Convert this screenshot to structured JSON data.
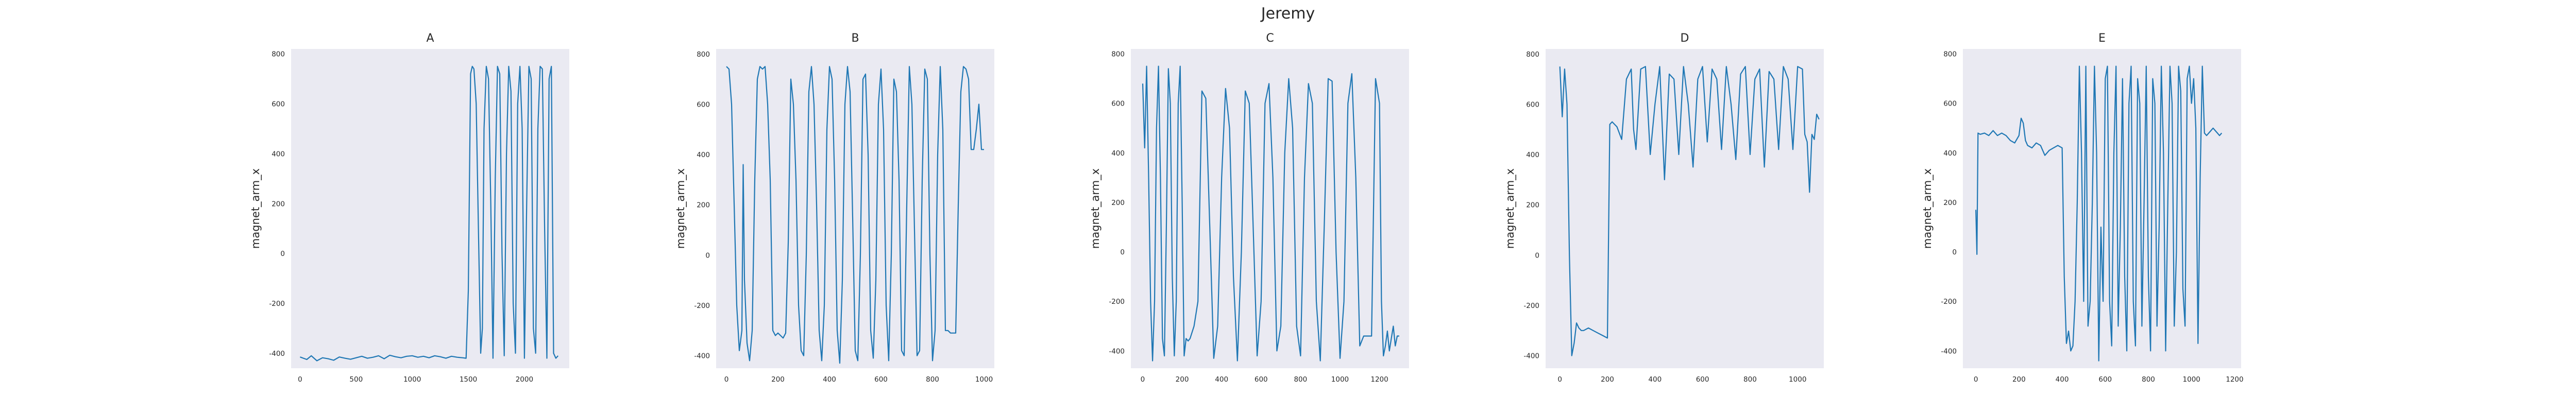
{
  "figure": {
    "suptitle": "Jeremy"
  },
  "colors": {
    "line": "#1f77b4",
    "axes_bg": "#eaeaf2",
    "text": "#262626"
  },
  "chart_data": [
    {
      "type": "line",
      "title": "A",
      "xlabel": "",
      "ylabel": "magnet_arm_x",
      "xlim": [
        -80,
        2400
      ],
      "ylim": [
        -460,
        820
      ],
      "xticks": [
        0,
        500,
        1000,
        1500,
        2000
      ],
      "yticks": [
        -400,
        -200,
        0,
        200,
        400,
        600,
        800
      ],
      "grid": false,
      "x": [
        0,
        30,
        60,
        100,
        150,
        200,
        250,
        300,
        350,
        400,
        450,
        500,
        550,
        600,
        650,
        700,
        750,
        800,
        850,
        900,
        950,
        1000,
        1050,
        1100,
        1150,
        1200,
        1250,
        1300,
        1350,
        1400,
        1450,
        1480,
        1500,
        1520,
        1535,
        1550,
        1570,
        1590,
        1610,
        1625,
        1640,
        1660,
        1680,
        1700,
        1720,
        1740,
        1760,
        1780,
        1800,
        1820,
        1840,
        1860,
        1880,
        1900,
        1920,
        1940,
        1960,
        1980,
        2000,
        2020,
        2040,
        2060,
        2080,
        2100,
        2120,
        2140,
        2160,
        2180,
        2200,
        2220,
        2240,
        2260,
        2280,
        2300
      ],
      "y": [
        -415,
        -420,
        -425,
        -410,
        -430,
        -418,
        -422,
        -428,
        -415,
        -420,
        -424,
        -418,
        -412,
        -420,
        -416,
        -410,
        -422,
        -408,
        -414,
        -418,
        -412,
        -410,
        -416,
        -412,
        -418,
        -410,
        -414,
        -420,
        -412,
        -416,
        -418,
        -420,
        -150,
        720,
        750,
        740,
        600,
        100,
        -400,
        -300,
        500,
        750,
        700,
        200,
        -420,
        300,
        750,
        720,
        0,
        -410,
        400,
        750,
        650,
        -200,
        -400,
        600,
        750,
        500,
        -420,
        200,
        750,
        700,
        -300,
        -400,
        500,
        750,
        740,
        100,
        -420,
        700,
        750,
        -400,
        -420,
        -410
      ]
    },
    {
      "type": "line",
      "title": "B",
      "xlabel": "",
      "ylabel": "magnet_arm_x",
      "xlim": [
        -40,
        1040
      ],
      "ylim": [
        -450,
        820
      ],
      "xticks": [
        0,
        200,
        400,
        600,
        800,
        1000
      ],
      "yticks": [
        -400,
        -200,
        0,
        200,
        400,
        600,
        800
      ],
      "grid": false,
      "x": [
        0,
        10,
        20,
        30,
        40,
        50,
        60,
        65,
        70,
        80,
        90,
        100,
        110,
        120,
        130,
        140,
        150,
        160,
        170,
        180,
        190,
        200,
        210,
        220,
        230,
        240,
        250,
        260,
        270,
        280,
        290,
        300,
        310,
        320,
        330,
        340,
        350,
        360,
        370,
        380,
        390,
        400,
        410,
        420,
        430,
        440,
        450,
        460,
        470,
        480,
        490,
        500,
        510,
        520,
        530,
        540,
        550,
        560,
        570,
        580,
        590,
        600,
        610,
        620,
        630,
        640,
        650,
        660,
        670,
        680,
        690,
        700,
        710,
        720,
        730,
        740,
        750,
        760,
        770,
        780,
        790,
        800,
        810,
        820,
        830,
        840,
        850,
        860,
        870,
        880,
        890,
        900,
        910,
        920,
        930,
        940,
        950,
        960,
        970,
        980,
        990,
        1000
      ],
      "y": [
        750,
        740,
        600,
        200,
        -200,
        -380,
        -300,
        360,
        -100,
        -350,
        -420,
        -300,
        300,
        700,
        750,
        740,
        750,
        600,
        300,
        -300,
        -320,
        -310,
        -320,
        -330,
        -310,
        50,
        700,
        600,
        300,
        -200,
        -380,
        -400,
        0,
        650,
        750,
        600,
        200,
        -300,
        -420,
        -200,
        500,
        750,
        700,
        300,
        -300,
        -430,
        -100,
        600,
        750,
        650,
        150,
        -380,
        -420,
        0,
        700,
        720,
        400,
        -300,
        -410,
        -100,
        600,
        740,
        500,
        -200,
        -420,
        0,
        700,
        650,
        300,
        -380,
        -400,
        200,
        750,
        600,
        100,
        -400,
        -380,
        300,
        740,
        700,
        0,
        -420,
        -300,
        400,
        750,
        500,
        -300,
        -300,
        -310,
        -310,
        -310,
        200,
        650,
        750,
        740,
        700,
        420,
        420,
        500,
        600,
        420,
        420
      ]
    },
    {
      "type": "line",
      "title": "C",
      "xlabel": "",
      "ylabel": "magnet_arm_x",
      "xlim": [
        -60,
        1350
      ],
      "ylim": [
        -470,
        820
      ],
      "xticks": [
        0,
        200,
        400,
        600,
        800,
        1000,
        1200
      ],
      "yticks": [
        -400,
        -200,
        0,
        200,
        400,
        600,
        800
      ],
      "grid": false,
      "x": [
        0,
        10,
        20,
        30,
        40,
        50,
        60,
        70,
        80,
        90,
        100,
        110,
        120,
        130,
        140,
        150,
        160,
        170,
        180,
        190,
        200,
        210,
        220,
        230,
        240,
        260,
        280,
        300,
        320,
        340,
        360,
        380,
        400,
        420,
        440,
        460,
        480,
        500,
        520,
        540,
        560,
        580,
        600,
        620,
        640,
        660,
        680,
        700,
        720,
        740,
        760,
        780,
        800,
        820,
        840,
        860,
        880,
        900,
        920,
        940,
        960,
        980,
        1000,
        1020,
        1040,
        1060,
        1080,
        1100,
        1120,
        1140,
        1160,
        1180,
        1200,
        1210,
        1220,
        1230,
        1240,
        1250,
        1260,
        1270,
        1280,
        1290,
        1300
      ],
      "y": [
        680,
        420,
        750,
        300,
        -200,
        -440,
        -200,
        500,
        750,
        300,
        -350,
        -420,
        100,
        740,
        600,
        -100,
        -420,
        -200,
        600,
        750,
        200,
        -420,
        -350,
        -360,
        -350,
        -300,
        -200,
        650,
        620,
        100,
        -430,
        -300,
        300,
        660,
        500,
        -100,
        -440,
        0,
        650,
        600,
        100,
        -420,
        -200,
        600,
        680,
        300,
        -400,
        -300,
        400,
        700,
        500,
        -300,
        -420,
        300,
        680,
        600,
        -200,
        -440,
        100,
        700,
        690,
        0,
        -430,
        -200,
        600,
        720,
        300,
        -380,
        -340,
        -340,
        -340,
        700,
        600,
        -200,
        -420,
        -380,
        -320,
        -400,
        -350,
        -300,
        -380,
        -340,
        -340
      ]
    },
    {
      "type": "line",
      "title": "D",
      "xlabel": "",
      "ylabel": "magnet_arm_x",
      "xlim": [
        -60,
        1110
      ],
      "ylim": [
        -450,
        820
      ],
      "xticks": [
        0,
        200,
        400,
        600,
        800,
        1000
      ],
      "yticks": [
        -400,
        -200,
        0,
        200,
        400,
        600,
        800
      ],
      "grid": false,
      "x": [
        0,
        10,
        20,
        30,
        40,
        50,
        60,
        70,
        80,
        90,
        100,
        120,
        140,
        160,
        180,
        200,
        210,
        220,
        240,
        260,
        280,
        300,
        310,
        320,
        340,
        360,
        380,
        400,
        420,
        440,
        460,
        480,
        500,
        520,
        540,
        560,
        580,
        600,
        620,
        640,
        660,
        680,
        700,
        720,
        740,
        760,
        780,
        800,
        820,
        840,
        860,
        880,
        900,
        920,
        940,
        960,
        980,
        1000,
        1020,
        1030,
        1040,
        1050,
        1060,
        1070,
        1080,
        1090
      ],
      "y": [
        750,
        550,
        740,
        600,
        0,
        -400,
        -350,
        -270,
        -290,
        -300,
        -300,
        -290,
        -300,
        -310,
        -320,
        -330,
        520,
        530,
        510,
        460,
        700,
        740,
        500,
        420,
        740,
        750,
        400,
        600,
        750,
        300,
        720,
        700,
        400,
        750,
        600,
        350,
        700,
        750,
        450,
        740,
        700,
        420,
        750,
        600,
        380,
        720,
        750,
        400,
        700,
        740,
        350,
        730,
        700,
        420,
        750,
        700,
        420,
        750,
        740,
        480,
        450,
        250,
        480,
        460,
        560,
        540
      ]
    },
    {
      "type": "line",
      "title": "E",
      "xlabel": "",
      "ylabel": "magnet_arm_x",
      "xlim": [
        -60,
        1230
      ],
      "ylim": [
        -470,
        820
      ],
      "xticks": [
        0,
        200,
        400,
        600,
        800,
        1000,
        1200
      ],
      "yticks": [
        -400,
        -200,
        0,
        200,
        400,
        600,
        800
      ],
      "grid": false,
      "x": [
        0,
        5,
        10,
        20,
        40,
        60,
        80,
        100,
        120,
        140,
        160,
        180,
        200,
        210,
        220,
        230,
        240,
        260,
        280,
        300,
        320,
        340,
        360,
        380,
        400,
        410,
        420,
        430,
        440,
        450,
        460,
        470,
        480,
        490,
        500,
        510,
        520,
        530,
        540,
        550,
        560,
        570,
        580,
        590,
        600,
        610,
        620,
        630,
        640,
        650,
        660,
        670,
        680,
        690,
        700,
        710,
        720,
        730,
        740,
        750,
        760,
        770,
        780,
        790,
        800,
        810,
        820,
        830,
        840,
        850,
        860,
        870,
        880,
        890,
        900,
        910,
        920,
        930,
        940,
        950,
        960,
        970,
        980,
        990,
        1000,
        1010,
        1020,
        1030,
        1040,
        1050,
        1060,
        1070,
        1080,
        1090,
        1100,
        1110,
        1120,
        1130,
        1140
      ],
      "y": [
        170,
        -10,
        480,
        475,
        480,
        470,
        490,
        470,
        480,
        470,
        450,
        440,
        470,
        540,
        520,
        450,
        430,
        420,
        440,
        430,
        390,
        410,
        420,
        430,
        420,
        -100,
        -370,
        -320,
        -400,
        -380,
        -200,
        200,
        750,
        400,
        -200,
        750,
        -300,
        -200,
        200,
        750,
        400,
        -440,
        100,
        -200,
        700,
        750,
        -200,
        -380,
        400,
        750,
        -300,
        100,
        700,
        -100,
        -400,
        600,
        750,
        -200,
        -380,
        700,
        600,
        -300,
        200,
        750,
        -100,
        -400,
        700,
        600,
        -300,
        100,
        750,
        400,
        -400,
        200,
        750,
        600,
        -300,
        0,
        750,
        650,
        -150,
        -300,
        700,
        750,
        600,
        700,
        500,
        -370,
        300,
        750,
        480,
        470,
        480,
        490,
        500,
        490,
        480,
        470,
        480
      ]
    }
  ]
}
